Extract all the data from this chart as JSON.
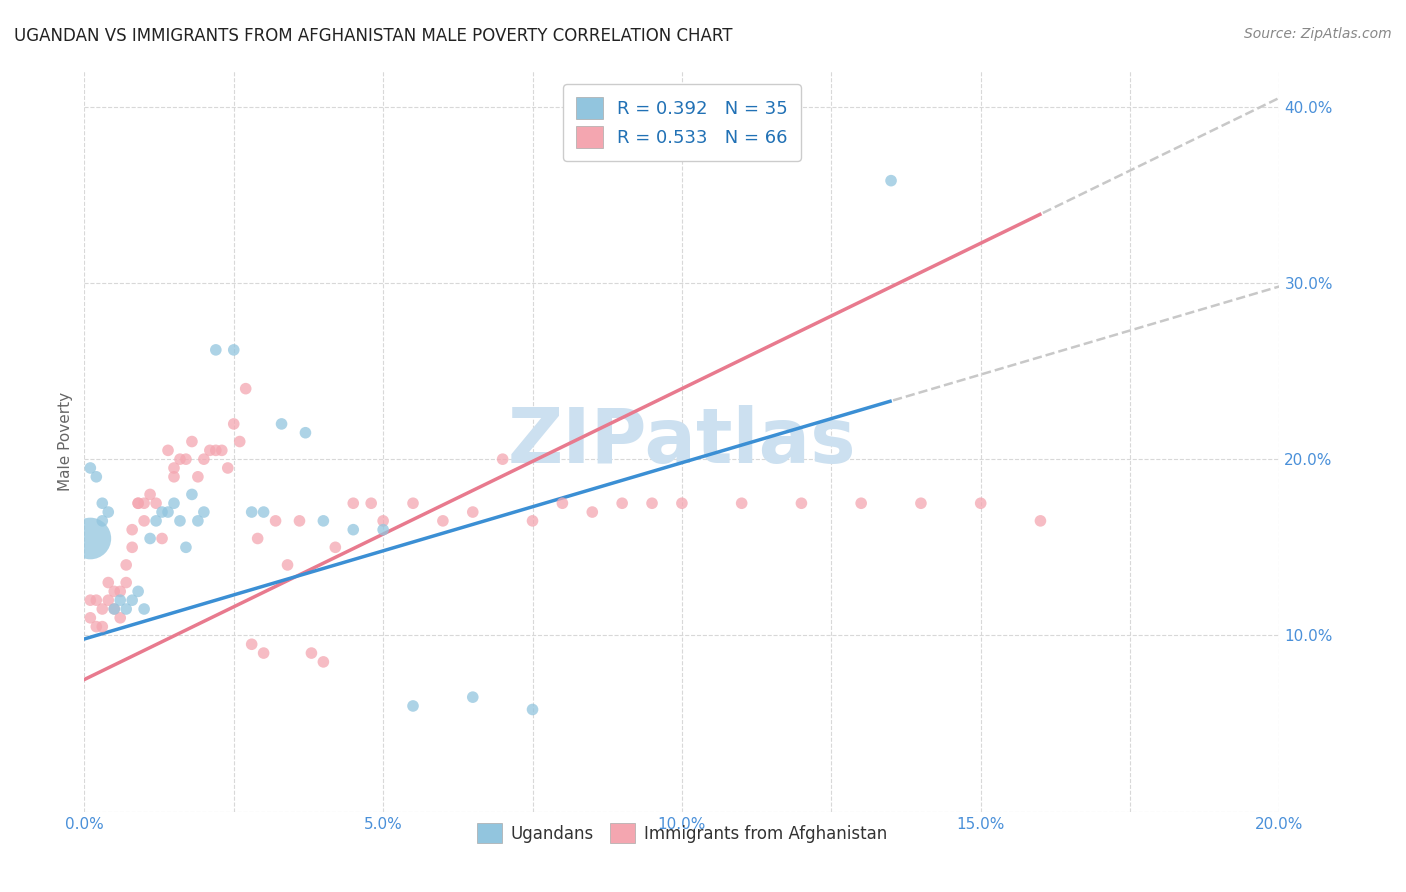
{
  "title": "UGANDAN VS IMMIGRANTS FROM AFGHANISTAN MALE POVERTY CORRELATION CHART",
  "source": "Source: ZipAtlas.com",
  "ylabel": "Male Poverty",
  "xlim": [
    0.0,
    0.2
  ],
  "ylim": [
    0.0,
    0.42
  ],
  "x_ticks": [
    0.0,
    0.025,
    0.05,
    0.075,
    0.1,
    0.125,
    0.15,
    0.175,
    0.2
  ],
  "x_tick_labels": [
    "0.0%",
    "",
    "5.0%",
    "",
    "10.0%",
    "",
    "15.0%",
    "",
    "20.0%"
  ],
  "y_ticks": [
    0.0,
    0.1,
    0.2,
    0.3,
    0.4
  ],
  "y_tick_labels": [
    "",
    "10.0%",
    "20.0%",
    "30.0%",
    "40.0%"
  ],
  "ugandan_color": "#92c5de",
  "afghan_color": "#f4a6b0",
  "ugandan_R": 0.392,
  "ugandan_N": 35,
  "afghan_R": 0.533,
  "afghan_N": 66,
  "legend_color": "#2171b5",
  "watermark": "ZIPatlas",
  "watermark_color": "#cce0f0",
  "ugandan_x": [
    0.001,
    0.002,
    0.003,
    0.003,
    0.004,
    0.005,
    0.006,
    0.007,
    0.008,
    0.009,
    0.01,
    0.011,
    0.012,
    0.013,
    0.014,
    0.015,
    0.016,
    0.017,
    0.018,
    0.019,
    0.02,
    0.022,
    0.025,
    0.028,
    0.03,
    0.033,
    0.037,
    0.04,
    0.045,
    0.05,
    0.055,
    0.065,
    0.075,
    0.135,
    0.001
  ],
  "ugandan_y": [
    0.195,
    0.19,
    0.175,
    0.165,
    0.17,
    0.115,
    0.12,
    0.115,
    0.12,
    0.125,
    0.115,
    0.155,
    0.165,
    0.17,
    0.17,
    0.175,
    0.165,
    0.15,
    0.18,
    0.165,
    0.17,
    0.262,
    0.262,
    0.17,
    0.17,
    0.22,
    0.215,
    0.165,
    0.16,
    0.16,
    0.06,
    0.065,
    0.058,
    0.358,
    0.155
  ],
  "ugandan_sizes": [
    70,
    70,
    70,
    70,
    70,
    70,
    70,
    70,
    70,
    70,
    70,
    70,
    70,
    70,
    70,
    70,
    70,
    70,
    70,
    70,
    70,
    70,
    70,
    70,
    70,
    70,
    70,
    70,
    70,
    70,
    70,
    70,
    70,
    70,
    900
  ],
  "afghan_x": [
    0.001,
    0.001,
    0.002,
    0.002,
    0.003,
    0.003,
    0.004,
    0.004,
    0.005,
    0.005,
    0.006,
    0.006,
    0.007,
    0.007,
    0.008,
    0.008,
    0.009,
    0.009,
    0.01,
    0.01,
    0.011,
    0.012,
    0.013,
    0.014,
    0.015,
    0.015,
    0.016,
    0.017,
    0.018,
    0.019,
    0.02,
    0.021,
    0.022,
    0.023,
    0.024,
    0.025,
    0.026,
    0.027,
    0.028,
    0.029,
    0.03,
    0.032,
    0.034,
    0.036,
    0.038,
    0.04,
    0.042,
    0.045,
    0.048,
    0.05,
    0.055,
    0.06,
    0.065,
    0.07,
    0.075,
    0.08,
    0.085,
    0.09,
    0.095,
    0.1,
    0.11,
    0.12,
    0.13,
    0.14,
    0.15,
    0.16
  ],
  "afghan_y": [
    0.12,
    0.11,
    0.105,
    0.12,
    0.115,
    0.105,
    0.13,
    0.12,
    0.115,
    0.125,
    0.11,
    0.125,
    0.13,
    0.14,
    0.15,
    0.16,
    0.175,
    0.175,
    0.175,
    0.165,
    0.18,
    0.175,
    0.155,
    0.205,
    0.19,
    0.195,
    0.2,
    0.2,
    0.21,
    0.19,
    0.2,
    0.205,
    0.205,
    0.205,
    0.195,
    0.22,
    0.21,
    0.24,
    0.095,
    0.155,
    0.09,
    0.165,
    0.14,
    0.165,
    0.09,
    0.085,
    0.15,
    0.175,
    0.175,
    0.165,
    0.175,
    0.165,
    0.17,
    0.2,
    0.165,
    0.175,
    0.17,
    0.175,
    0.175,
    0.175,
    0.175,
    0.175,
    0.175,
    0.175,
    0.175,
    0.165
  ],
  "ugandan_line_color": "#3b8fd4",
  "afghan_line_color": "#e87a8e",
  "trendline_extend_color": "#c8c8c8",
  "ugandan_trend_intercept": 0.098,
  "ugandan_trend_slope": 1.0,
  "afghan_trend_intercept": 0.075,
  "afghan_trend_slope": 1.65
}
